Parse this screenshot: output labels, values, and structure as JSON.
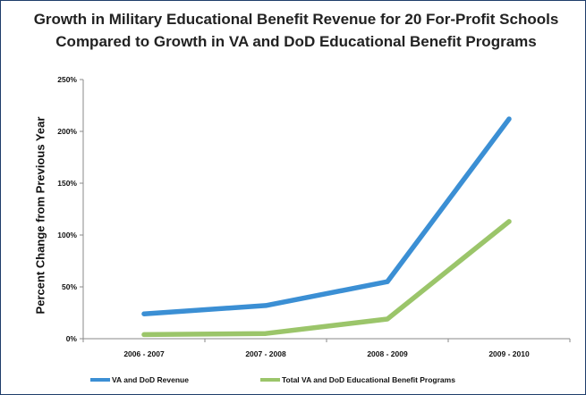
{
  "chart_data": {
    "type": "line",
    "title": "Growth in Military Educational Benefit Revenue for 20 For-Profit Schools Compared to Growth in VA and DoD Educational Benefit Programs",
    "xlabel": "",
    "ylabel": "Percent Change from Previous Year",
    "categories": [
      "2006 - 2007",
      "2007 - 2008",
      "2008 - 2009",
      "2009 - 2010"
    ],
    "y_ticks": [
      "0%",
      "50%",
      "100%",
      "150%",
      "200%",
      "250%"
    ],
    "ylim": [
      0,
      250
    ],
    "grid": false,
    "legend_position": "bottom",
    "series": [
      {
        "name": "VA and DoD Revenue",
        "color": "#3b8fd4",
        "values": [
          24,
          32,
          55,
          212
        ]
      },
      {
        "name": "Total VA and DoD Educational Benefit Programs",
        "color": "#9bc56a",
        "values": [
          4,
          5,
          19,
          113
        ]
      }
    ]
  }
}
